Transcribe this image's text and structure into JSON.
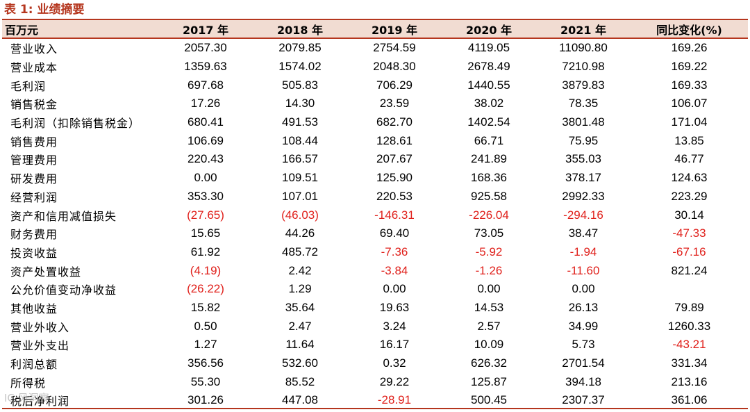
{
  "title": "表 1:  业绩摘要",
  "headers": [
    "百万元",
    "2017 年",
    "2018 年",
    "2019 年",
    "2020 年",
    "2021 年",
    "同比变化(%)"
  ],
  "colors": {
    "accent": "#b5361e",
    "header_bg": "#f1dcd2",
    "negative": "#e0201b"
  },
  "rows": [
    {
      "label": "营业收入",
      "values": [
        "2057.30",
        "2079.85",
        "2754.59",
        "4119.05",
        "11090.80",
        "169.26"
      ]
    },
    {
      "label": "营业成本",
      "values": [
        "1359.63",
        "1574.02",
        "2048.30",
        "2678.49",
        "7210.98",
        "169.22"
      ]
    },
    {
      "label": "毛利润",
      "values": [
        "697.68",
        "505.83",
        "706.29",
        "1440.55",
        "3879.83",
        "169.33"
      ]
    },
    {
      "label": "销售税金",
      "values": [
        "17.26",
        "14.30",
        "23.59",
        "38.02",
        "78.35",
        "106.07"
      ]
    },
    {
      "label": "毛利润（扣除销售税金）",
      "values": [
        "680.41",
        "491.53",
        "682.70",
        "1402.54",
        "3801.48",
        "171.04"
      ]
    },
    {
      "label": "销售费用",
      "values": [
        "106.69",
        "108.44",
        "128.61",
        "66.71",
        "75.95",
        "13.85"
      ]
    },
    {
      "label": "管理费用",
      "values": [
        "220.43",
        "166.57",
        "207.67",
        "241.89",
        "355.03",
        "46.77"
      ]
    },
    {
      "label": "研发费用",
      "values": [
        "0.00",
        "109.51",
        "125.90",
        "168.36",
        "378.17",
        "124.63"
      ]
    },
    {
      "label": "经营利润",
      "values": [
        "353.30",
        "107.01",
        "220.53",
        "925.58",
        "2992.33",
        "223.29"
      ]
    },
    {
      "label": "资产和信用减值损失",
      "values": [
        "(27.65)",
        "(46.03)",
        "-146.31",
        "-226.04",
        "-294.16",
        "30.14"
      ]
    },
    {
      "label": "财务费用",
      "values": [
        "15.65",
        "44.26",
        "69.40",
        "73.05",
        "38.47",
        "-47.33"
      ]
    },
    {
      "label": "投资收益",
      "values": [
        "61.92",
        "485.72",
        "-7.36",
        "-5.92",
        "-1.94",
        "-67.16"
      ]
    },
    {
      "label": "资产处置收益",
      "values": [
        "(4.19)",
        "2.42",
        "-3.84",
        "-1.26",
        "-11.60",
        "821.24"
      ]
    },
    {
      "label": "公允价值变动净收益",
      "values": [
        "(26.22)",
        "1.29",
        "0.00",
        "0.00",
        "0.00",
        ""
      ]
    },
    {
      "label": "其他收益",
      "values": [
        "15.82",
        "35.64",
        "19.63",
        "14.53",
        "26.13",
        "79.89"
      ]
    },
    {
      "label": "营业外收入",
      "values": [
        "0.50",
        "2.47",
        "3.24",
        "2.57",
        "34.99",
        "1260.33"
      ]
    },
    {
      "label": "营业外支出",
      "values": [
        "1.27",
        "11.64",
        "16.17",
        "10.09",
        "5.73",
        "-43.21"
      ]
    },
    {
      "label": "利润总额",
      "values": [
        "356.56",
        "532.60",
        "0.32",
        "626.32",
        "2701.54",
        "331.34"
      ]
    },
    {
      "label": "所得税",
      "values": [
        "55.30",
        "85.52",
        "29.22",
        "125.87",
        "394.18",
        "213.16"
      ]
    },
    {
      "label": "税后净利润",
      "values": [
        "301.26",
        "447.08",
        "-28.91",
        "500.45",
        "2307.37",
        "361.06"
      ]
    }
  ],
  "watermark": "IC 风洞察"
}
